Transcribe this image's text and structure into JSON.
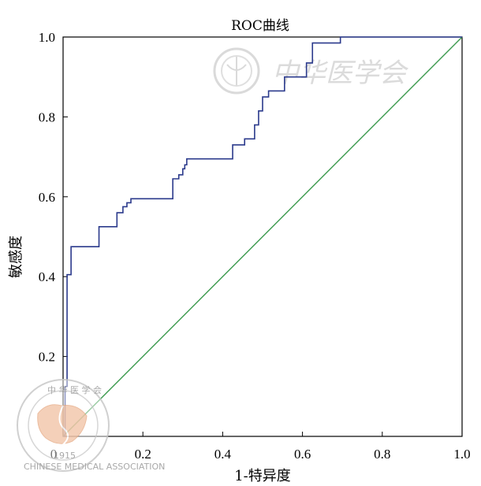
{
  "chart_data": {
    "type": "line",
    "title": "ROC曲线",
    "xlabel": "1-特异度",
    "ylabel": "敏感度",
    "xlim": [
      0,
      1
    ],
    "ylim": [
      0,
      1
    ],
    "x_ticks": [
      "0",
      "0.2",
      "0.4",
      "0.6",
      "0.8",
      "1.0"
    ],
    "y_ticks": [
      "1.0",
      "0.8",
      "0.6",
      "0.4",
      "0.2"
    ],
    "grid": false,
    "legend": "none",
    "series": [
      {
        "color": "#2b3a8c",
        "x": [
          0.0,
          0.005,
          0.005,
          0.01,
          0.01,
          0.02,
          0.02,
          0.04,
          0.04,
          0.09,
          0.09,
          0.135,
          0.135,
          0.15,
          0.15,
          0.16,
          0.16,
          0.17,
          0.17,
          0.275,
          0.275,
          0.29,
          0.29,
          0.3,
          0.3,
          0.305,
          0.305,
          0.31,
          0.31,
          0.425,
          0.425,
          0.455,
          0.455,
          0.48,
          0.48,
          0.49,
          0.49,
          0.5,
          0.5,
          0.515,
          0.515,
          0.555,
          0.555,
          0.61,
          0.61,
          0.625,
          0.625,
          0.695,
          0.695,
          1.0
        ],
        "y": [
          0.0,
          0.0,
          0.125,
          0.125,
          0.405,
          0.405,
          0.475,
          0.475,
          0.475,
          0.475,
          0.525,
          0.525,
          0.56,
          0.56,
          0.575,
          0.575,
          0.585,
          0.585,
          0.595,
          0.595,
          0.645,
          0.645,
          0.655,
          0.655,
          0.67,
          0.67,
          0.68,
          0.68,
          0.695,
          0.695,
          0.73,
          0.73,
          0.745,
          0.745,
          0.78,
          0.78,
          0.815,
          0.815,
          0.85,
          0.85,
          0.865,
          0.865,
          0.9,
          0.9,
          0.935,
          0.935,
          0.985,
          0.985,
          1.0,
          1.0
        ]
      },
      {
        "color": "#3c9a4e",
        "x": [
          0,
          1
        ],
        "y": [
          0,
          1
        ]
      }
    ]
  },
  "watermark": {
    "text": "中华医学会",
    "seal_top": "中 华 医 学 会",
    "seal_bottom": "CHINESE MEDICAL ASSOCIATION",
    "seal_year": "1915"
  }
}
